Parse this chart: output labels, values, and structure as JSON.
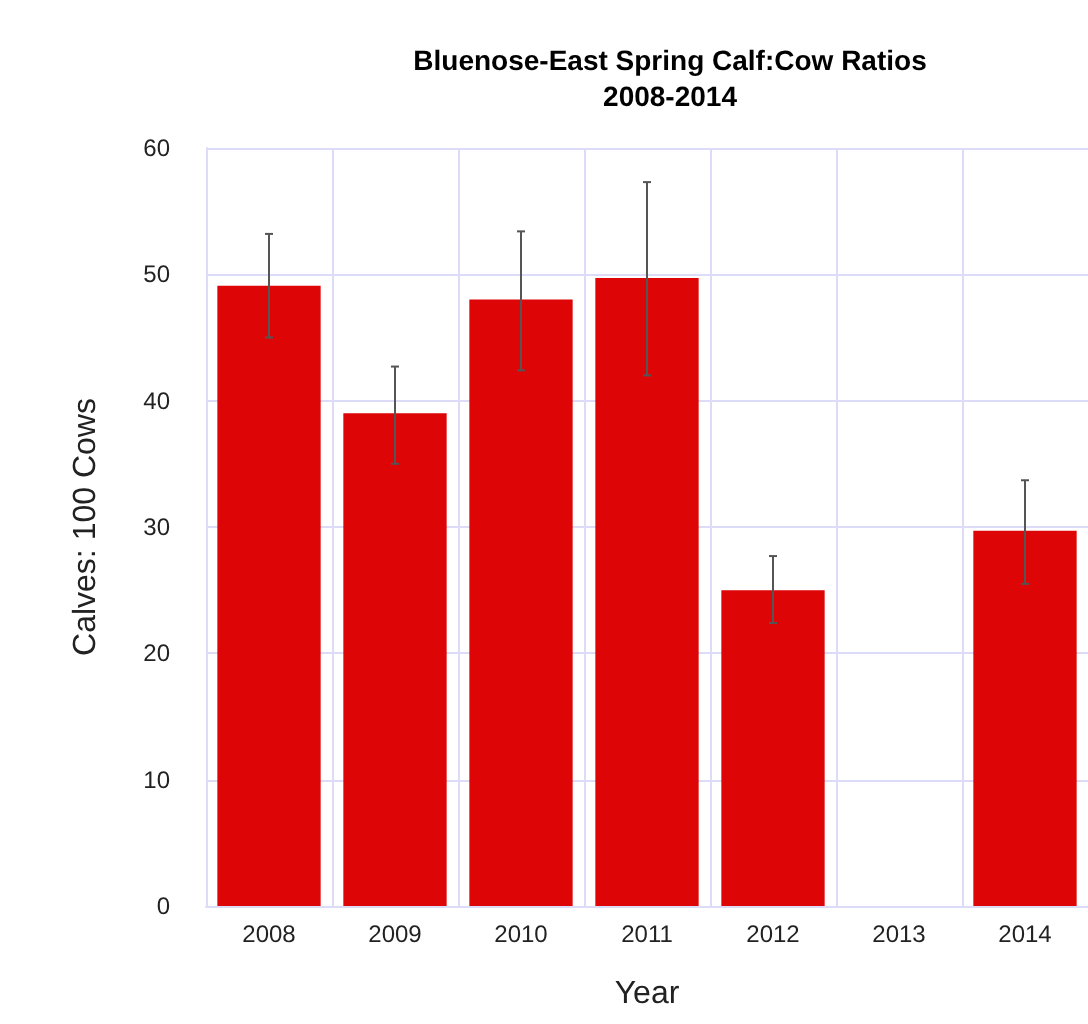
{
  "chart_data": {
    "type": "bar",
    "title": "Bluenose-East Spring Calf:Cow Ratios\n2008-2014",
    "xlabel": "Year",
    "ylabel": "Calves: 100 Cows",
    "categories": [
      "2008",
      "2009",
      "2010",
      "2011",
      "2012",
      "2013",
      "2014"
    ],
    "values": [
      49.1,
      39,
      48,
      49.7,
      25,
      null,
      29.7
    ],
    "errors": [
      [
        45,
        53.2
      ],
      [
        35,
        42.7
      ],
      [
        42.4,
        53.4
      ],
      [
        42,
        57.3
      ],
      [
        22.4,
        27.7
      ],
      null,
      [
        25.5,
        33.7
      ]
    ],
    "color": "#dd0505",
    "ylim": [
      0,
      60
    ],
    "yticks": [
      0,
      10,
      20,
      30,
      40,
      50,
      60
    ],
    "grid": true
  }
}
